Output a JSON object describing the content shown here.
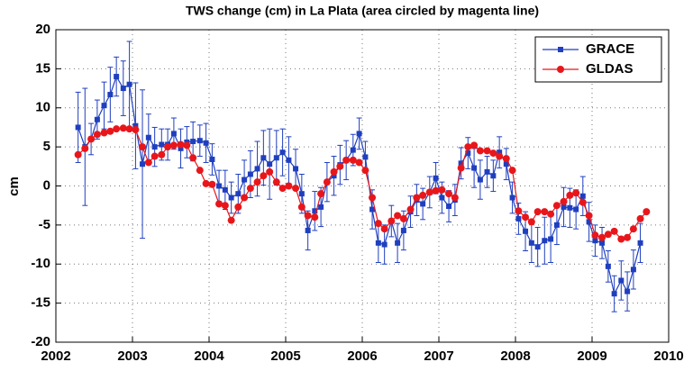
{
  "chart_data": {
    "type": "line",
    "title": "TWS change (cm) in La Plata (area circled by magenta line)",
    "y_label": "cm",
    "x": [
      2002.29,
      2002.38,
      2002.46,
      2002.54,
      2002.63,
      2002.71,
      2002.79,
      2002.88,
      2002.96,
      2003.04,
      2003.13,
      2003.21,
      2003.29,
      2003.38,
      2003.46,
      2003.54,
      2003.63,
      2003.71,
      2003.79,
      2003.88,
      2003.96,
      2004.04,
      2004.13,
      2004.21,
      2004.29,
      2004.38,
      2004.46,
      2004.54,
      2004.63,
      2004.71,
      2004.79,
      2004.88,
      2004.96,
      2005.04,
      2005.13,
      2005.21,
      2005.29,
      2005.38,
      2005.46,
      2005.54,
      2005.63,
      2005.71,
      2005.79,
      2005.88,
      2005.96,
      2006.04,
      2006.13,
      2006.21,
      2006.29,
      2006.38,
      2006.46,
      2006.54,
      2006.63,
      2006.71,
      2006.79,
      2006.88,
      2006.96,
      2007.04,
      2007.13,
      2007.21,
      2007.29,
      2007.38,
      2007.46,
      2007.54,
      2007.63,
      2007.71,
      2007.79,
      2007.88,
      2007.96,
      2008.04,
      2008.13,
      2008.21,
      2008.29,
      2008.38,
      2008.46,
      2008.54,
      2008.63,
      2008.71,
      2008.79,
      2008.88,
      2008.96,
      2009.04,
      2009.13,
      2009.21,
      2009.29,
      2009.38,
      2009.46,
      2009.54,
      2009.63,
      2009.71
    ],
    "series": [
      {
        "name": "GRACE",
        "color": "#1f3fbf",
        "marker": "square",
        "values": [
          7.5,
          5.0,
          6.0,
          8.5,
          10.3,
          11.7,
          14.0,
          12.5,
          13.0,
          7.7,
          2.8,
          6.2,
          5.0,
          5.3,
          5.3,
          6.7,
          4.8,
          5.6,
          5.7,
          5.8,
          5.5,
          3.4,
          0.0,
          -0.5,
          -1.5,
          -1.0,
          0.8,
          1.5,
          2.2,
          3.6,
          2.8,
          3.6,
          4.3,
          3.3,
          2.2,
          -1.0,
          -5.7,
          -3.2,
          -2.7,
          0.5,
          1.3,
          2.7,
          3.3,
          4.6,
          6.7,
          3.7,
          -3.0,
          -7.3,
          -7.5,
          -4.5,
          -7.3,
          -5.7,
          -3.3,
          -1.8,
          -2.3,
          -0.8,
          1.0,
          -1.5,
          -2.6,
          -1.8,
          2.9,
          4.2,
          2.3,
          0.8,
          1.8,
          1.3,
          4.3,
          2.8,
          -1.5,
          -4.2,
          -5.8,
          -7.3,
          -7.8,
          -7.0,
          -6.8,
          -5.0,
          -2.7,
          -2.8,
          -3.0,
          -1.3,
          -4.6,
          -7.0,
          -7.3,
          -10.3,
          -13.8,
          -12.1,
          -13.5,
          -10.7,
          -7.3,
          null
        ],
        "errors": [
          4.5,
          7.5,
          2.0,
          2.5,
          3.0,
          3.5,
          2.5,
          3.5,
          5.5,
          5.5,
          9.5,
          3.0,
          2.5,
          2.0,
          2.0,
          2.0,
          2.5,
          2.0,
          2.5,
          2.0,
          2.5,
          2.0,
          2.0,
          2.5,
          2.0,
          2.5,
          2.5,
          3.0,
          3.5,
          3.5,
          4.5,
          3.5,
          3.0,
          3.0,
          2.5,
          2.5,
          2.5,
          2.5,
          2.5,
          2.5,
          2.5,
          2.5,
          2.5,
          2.0,
          2.0,
          2.0,
          2.5,
          2.5,
          2.5,
          2.0,
          2.5,
          2.5,
          2.0,
          2.0,
          2.0,
          2.0,
          2.0,
          2.0,
          2.0,
          2.0,
          2.0,
          2.0,
          2.5,
          2.5,
          2.0,
          2.0,
          2.0,
          2.0,
          2.0,
          2.0,
          2.5,
          2.5,
          2.5,
          3.0,
          3.0,
          2.5,
          2.5,
          2.5,
          2.5,
          2.5,
          2.5,
          2.0,
          2.0,
          2.0,
          2.3,
          2.5,
          2.5,
          2.5,
          2.5,
          null
        ]
      },
      {
        "name": "GLDAS",
        "color": "#e8161b",
        "marker": "circle",
        "values": [
          4.0,
          4.8,
          6.0,
          6.6,
          6.8,
          7.0,
          7.3,
          7.4,
          7.3,
          7.2,
          5.0,
          3.0,
          3.8,
          4.0,
          5.0,
          5.2,
          5.3,
          5.2,
          3.6,
          2.0,
          0.3,
          0.2,
          -2.3,
          -2.5,
          -4.4,
          -2.7,
          -1.5,
          -0.3,
          0.5,
          1.3,
          1.8,
          0.5,
          -0.3,
          0.0,
          -0.3,
          -2.7,
          -3.8,
          -4.0,
          -1.0,
          0.5,
          1.8,
          2.5,
          3.3,
          3.3,
          3.0,
          2.0,
          -1.5,
          -4.8,
          -5.5,
          -4.5,
          -3.8,
          -4.2,
          -3.0,
          -1.5,
          -1.2,
          -0.8,
          -0.6,
          -0.5,
          -1.0,
          -1.5,
          2.3,
          5.0,
          5.2,
          4.5,
          4.5,
          4.2,
          3.8,
          3.5,
          2.0,
          -3.2,
          -4.0,
          -4.6,
          -3.3,
          -3.3,
          -3.6,
          -2.5,
          -2.0,
          -1.2,
          -0.9,
          -2.1,
          -3.8,
          -6.3,
          -6.6,
          -6.2,
          -5.8,
          -6.8,
          -6.6,
          -5.5,
          -4.2,
          -3.3
        ]
      }
    ],
    "xlim": [
      2002,
      2010
    ],
    "xticks": [
      2002,
      2003,
      2004,
      2005,
      2006,
      2007,
      2008,
      2009,
      2010
    ],
    "ylim": [
      -20,
      20
    ],
    "yticks": [
      -20,
      -15,
      -10,
      -5,
      0,
      5,
      10,
      15,
      20
    ],
    "grid": true,
    "legend": "upper right"
  }
}
